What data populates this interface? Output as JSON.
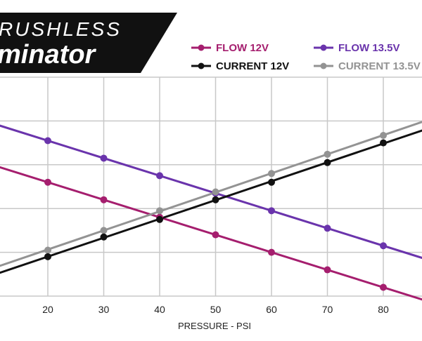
{
  "brand": {
    "line1": "RUSHLESS",
    "line2": "minator"
  },
  "chart_data": {
    "type": "line",
    "title": "",
    "xlabel": "PRESSURE - PSI",
    "ylabel": "",
    "xlim": [
      10,
      88
    ],
    "ylim": [
      0,
      5
    ],
    "x_ticks": [
      20,
      30,
      40,
      50,
      60,
      70,
      80
    ],
    "grid": true,
    "legend_position": "top-right",
    "series": [
      {
        "name": "FLOW 12V",
        "color": "#a51e6e",
        "x": [
          20,
          30,
          40,
          50,
          60,
          70,
          80
        ],
        "values": [
          2.6,
          2.2,
          1.8,
          1.4,
          1.0,
          0.6,
          0.2
        ]
      },
      {
        "name": "FLOW 13.5V",
        "color": "#6a34ac",
        "x": [
          20,
          30,
          40,
          50,
          60,
          70,
          80
        ],
        "values": [
          3.55,
          3.15,
          2.75,
          2.35,
          1.95,
          1.55,
          1.15
        ]
      },
      {
        "name": "CURRENT 12V",
        "color": "#111111",
        "x": [
          20,
          30,
          40,
          50,
          60,
          70,
          80
        ],
        "values": [
          0.9,
          1.35,
          1.75,
          2.2,
          2.6,
          3.05,
          3.5
        ]
      },
      {
        "name": "CURRENT 13.5V",
        "color": "#939393",
        "x": [
          20,
          30,
          40,
          50,
          60,
          70,
          80
        ],
        "values": [
          1.05,
          1.5,
          1.95,
          2.38,
          2.8,
          3.24,
          3.67
        ]
      }
    ]
  }
}
